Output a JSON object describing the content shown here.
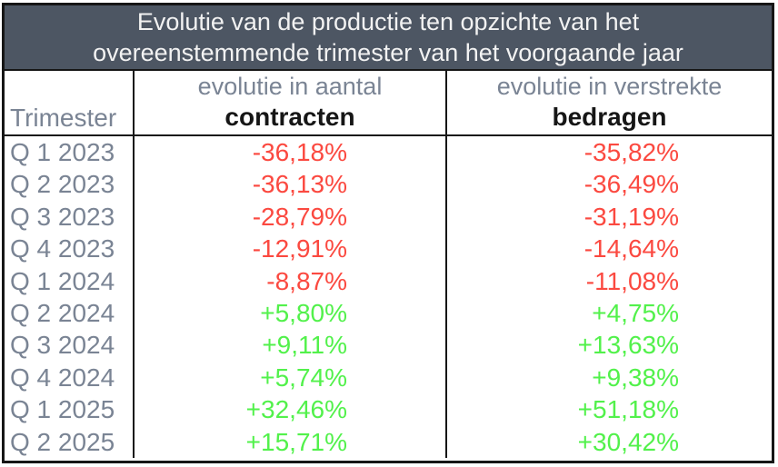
{
  "colors": {
    "title_bg": "#4d5663",
    "title_text": "#f2f2f2",
    "label_gray": "#7a8494",
    "bold_dark": "#161616",
    "neg": "#fb4940",
    "pos": "#52f14b",
    "border": "#161616"
  },
  "table": {
    "title_line1": "Evolutie van de productie ten opzichte van het",
    "title_line2": "overeenstemmende trimester van het voorgaande jaar",
    "header": {
      "col1": "Trimester",
      "col2_line1": "evolutie in aantal",
      "col2_line2": "contracten",
      "col3_line1": "evolutie in verstrekte",
      "col3_line2": "bedragen"
    },
    "rows": [
      {
        "quarter": "Q 1 2023",
        "contracts": "-36,18%",
        "amounts": "-35,82%"
      },
      {
        "quarter": "Q 2 2023",
        "contracts": "-36,13%",
        "amounts": "-36,49%"
      },
      {
        "quarter": "Q 3 2023",
        "contracts": "-28,79%",
        "amounts": "-31,19%"
      },
      {
        "quarter": "Q 4 2023",
        "contracts": "-12,91%",
        "amounts": "-14,64%"
      },
      {
        "quarter": "Q 1 2024",
        "contracts": "-8,87%",
        "amounts": "-11,08%"
      },
      {
        "quarter": "Q 2 2024",
        "contracts": "+5,80%",
        "amounts": "+4,75%"
      },
      {
        "quarter": "Q 3 2024",
        "contracts": "+9,11%",
        "amounts": "+13,63%"
      },
      {
        "quarter": "Q 4 2024",
        "contracts": "+5,74%",
        "amounts": "+9,38%"
      },
      {
        "quarter": "Q 1 2025",
        "contracts": "+32,46%",
        "amounts": "+51,18%"
      },
      {
        "quarter": "Q 2 2025",
        "contracts": "+15,71%",
        "amounts": "+30,42%"
      }
    ]
  },
  "chart_data": {
    "type": "table",
    "title": "Evolutie van de productie ten opzichte van het overeenstemmende trimester van het voorgaande jaar",
    "columns": [
      "Trimester",
      "evolutie in aantal contracten",
      "evolutie in verstrekte bedragen"
    ],
    "categories": [
      "Q 1 2023",
      "Q 2 2023",
      "Q 3 2023",
      "Q 4 2023",
      "Q 1 2024",
      "Q 2 2024",
      "Q 3 2024",
      "Q 4 2024",
      "Q 1 2025",
      "Q 2 2025"
    ],
    "series": [
      {
        "name": "evolutie in aantal contracten",
        "values": [
          -36.18,
          -36.13,
          -28.79,
          -12.91,
          -8.87,
          5.8,
          9.11,
          5.74,
          32.46,
          15.71
        ]
      },
      {
        "name": "evolutie in verstrekte bedragen",
        "values": [
          -35.82,
          -36.49,
          -31.19,
          -14.64,
          -11.08,
          4.75,
          13.63,
          9.38,
          51.18,
          30.42
        ]
      }
    ],
    "value_unit": "%",
    "negative_color": "#fb4940",
    "positive_color": "#52f14b"
  }
}
